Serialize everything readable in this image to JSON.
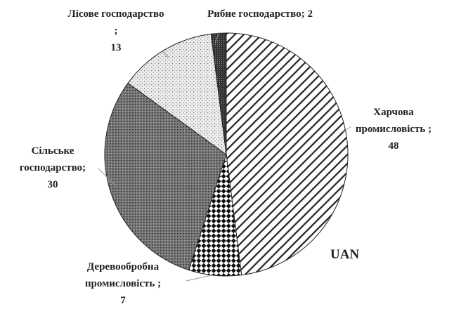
{
  "chart_data": {
    "type": "pie",
    "categories": [
      "Харчова промисловість ;",
      "Деревообробна промисловість ;",
      "Сільське господарство;",
      "Лісове господарство ;",
      "Рибне господарство;"
    ],
    "values": [
      48,
      7,
      30,
      13,
      2
    ],
    "annotation": "UAN"
  }
}
